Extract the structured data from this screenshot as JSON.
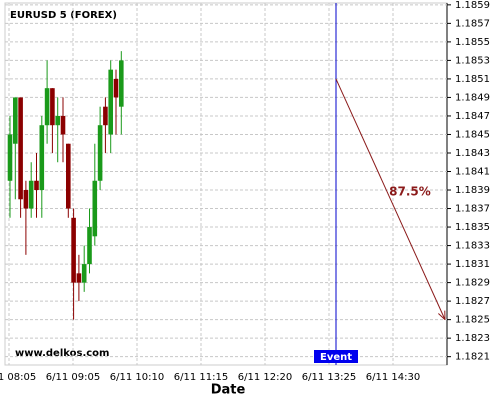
{
  "chart_data": {
    "type": "candlestick",
    "title": "EURUSD 5 (FOREX)",
    "xlabel": "Date",
    "xtick_labels": [
      "6/11 08:05",
      "6/11 09:05",
      "6/11 10:10",
      "6/11 11:15",
      "6/11 12:20",
      "6/11 13:25",
      "6/11 14:30"
    ],
    "up_color": "#1a9a1a",
    "down_color": "#8b0000",
    "grid": true,
    "ylim": [
      1.18201,
      1.18592
    ],
    "yticks": [
      1.1821,
      1.1823,
      1.1825,
      1.1827,
      1.1829,
      1.1831,
      1.1833,
      1.1835,
      1.1837,
      1.1839,
      1.1841,
      1.1843,
      1.1845,
      1.1847,
      1.1849,
      1.1851,
      1.1853,
      1.1855,
      1.1857,
      1.1859
    ],
    "open": [
      1.184,
      1.1844,
      1.1849,
      1.1839,
      1.1837,
      1.184,
      1.1839,
      1.1846,
      1.185,
      1.1846,
      1.1847,
      1.1844,
      1.1836,
      1.183,
      1.1829,
      1.1831,
      1.1834,
      1.184,
      1.1848,
      1.1845,
      1.1851,
      1.1848
    ],
    "high": [
      1.1847,
      1.1849,
      1.1849,
      1.184,
      1.1842,
      1.1843,
      1.1847,
      1.1853,
      1.185,
      1.1849,
      1.1849,
      1.1844,
      1.1837,
      1.1832,
      1.1833,
      1.1837,
      1.1844,
      1.1848,
      1.1849,
      1.1853,
      1.1852,
      1.1854
    ],
    "low": [
      1.1836,
      1.1838,
      1.1836,
      1.1832,
      1.1836,
      1.1836,
      1.1836,
      1.1844,
      1.1843,
      1.1842,
      1.1842,
      1.1836,
      1.1825,
      1.1827,
      1.1828,
      1.183,
      1.1833,
      1.1839,
      1.1843,
      1.1843,
      1.1845,
      1.1845
    ],
    "close": [
      1.1845,
      1.1849,
      1.1838,
      1.1837,
      1.184,
      1.1839,
      1.1846,
      1.185,
      1.1846,
      1.1847,
      1.1845,
      1.1837,
      1.1829,
      1.1829,
      1.1831,
      1.1835,
      1.184,
      1.1846,
      1.1846,
      1.1852,
      1.1849,
      1.1853
    ],
    "event_label": "Event",
    "projection": {
      "from": 1.1851,
      "to": 1.1825,
      "label": "87.5%",
      "color": "#8b1a1a"
    },
    "watermark": "www.delkos.com"
  }
}
